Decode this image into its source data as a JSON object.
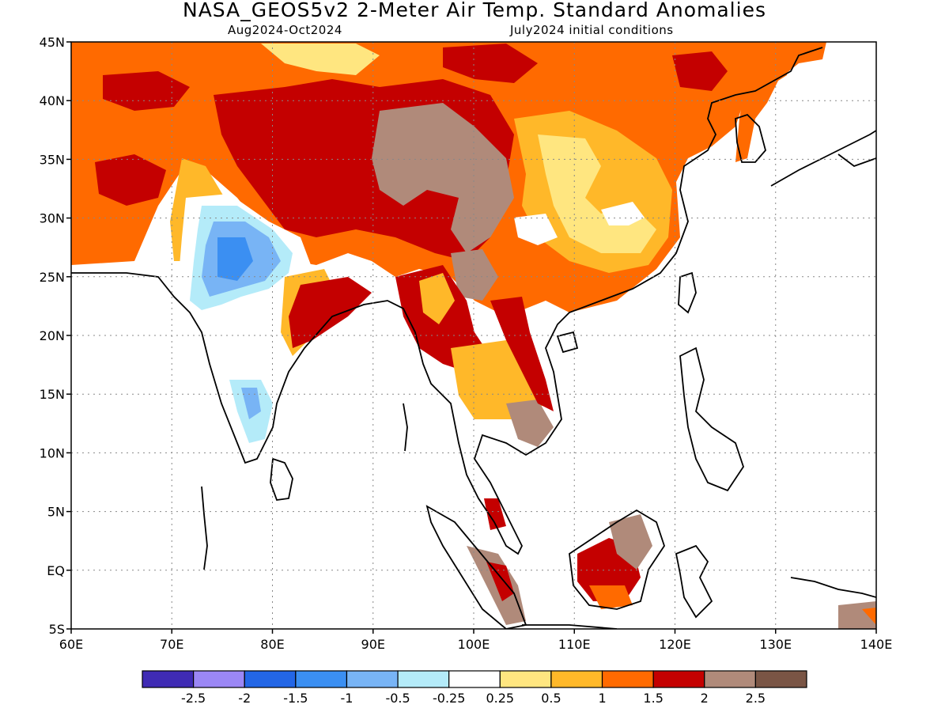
{
  "header": {
    "title": "NASA_GEOS5v2 2-Meter Air Temp. Standard Anomalies",
    "period": "Aug2024-Oct2024",
    "initial_conditions": "July2024 initial conditions"
  },
  "axes": {
    "lat_labels": [
      "45N",
      "40N",
      "35N",
      "30N",
      "25N",
      "20N",
      "15N",
      "10N",
      "5N",
      "EQ",
      "5S"
    ],
    "lon_labels": [
      "60E",
      "70E",
      "80E",
      "90E",
      "100E",
      "110E",
      "120E",
      "130E",
      "140E"
    ],
    "lat_range": [
      -5,
      45
    ],
    "lon_range": [
      60,
      140
    ],
    "grid": "dotted"
  },
  "colorbar": {
    "colors": [
      "#3f2bb4",
      "#9b87f5",
      "#2366e6",
      "#3b8ff2",
      "#78b4f5",
      "#b4ebf9",
      "#ffffff",
      "#ffe680",
      "#ffb829",
      "#ff6a00",
      "#c40000",
      "#b08a7a",
      "#7a5545"
    ],
    "labels": [
      "-2.5",
      "-2",
      "-1.5",
      "-1",
      "-0.5",
      "-0.25",
      "0.25",
      "0.5",
      "1",
      "1.5",
      "2",
      "2.5"
    ]
  },
  "map": {
    "region": "South and East Asia",
    "palette": {
      "orange": "#ff6a00",
      "darkred": "#c40000",
      "brown": "#b08a7a",
      "darkbrown": "#7a5545",
      "lightorange": "#ffb829",
      "yellow": "#ffe680",
      "lightblue": "#b4ebf9",
      "blue": "#78b4f5",
      "midblue": "#3b8ff2",
      "ocean": "#ffffff"
    }
  }
}
